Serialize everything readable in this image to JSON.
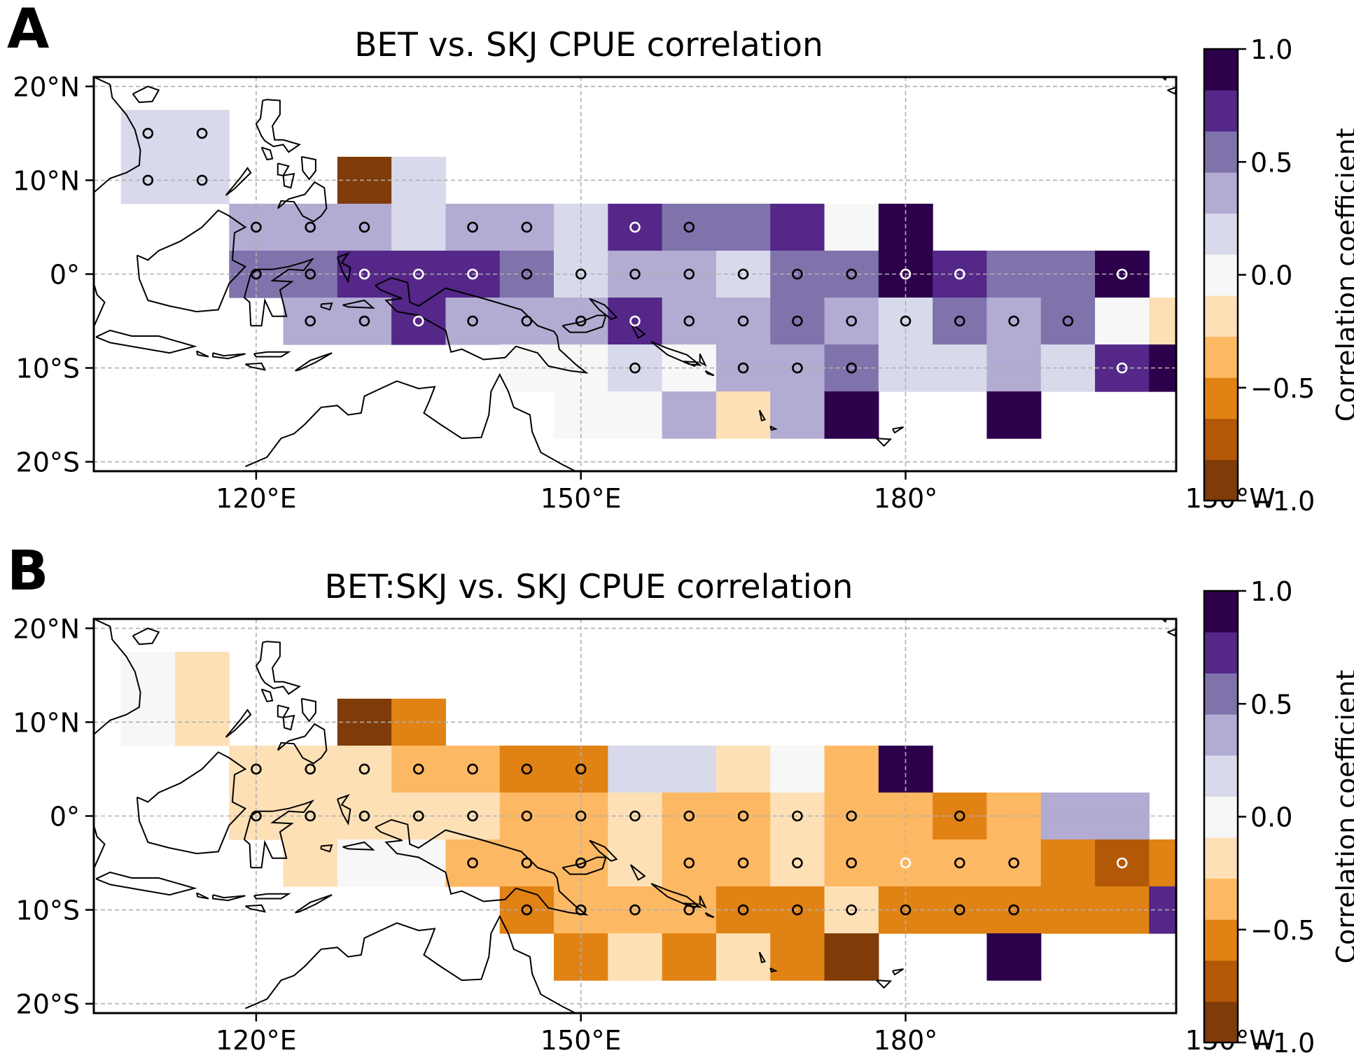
{
  "figure": {
    "colorbar": {
      "label": "Correlation coefficient",
      "ticks": [
        "1.0",
        "0.5",
        "0.0",
        "−0.5",
        "−1.0"
      ],
      "tick_values": [
        1.0,
        0.5,
        0.0,
        -0.5,
        -1.0
      ],
      "vmin": -1.0,
      "vmax": 1.0,
      "colors": [
        "#7f3b08",
        "#b35806",
        "#e08214",
        "#fdb863",
        "#fee0b6",
        "#f7f7f7",
        "#d8daeb",
        "#b2abd2",
        "#8073ac",
        "#542788",
        "#2d004b"
      ]
    },
    "axes": {
      "lon_range": [
        105,
        205
      ],
      "lat_range": [
        -21,
        21
      ],
      "x_ticks": [
        "120°E",
        "150°E",
        "180°",
        "150°W"
      ],
      "x_tick_values": [
        120,
        150,
        180,
        210
      ],
      "y_ticks": [
        "20°N",
        "10°N",
        "0°",
        "10°S",
        "20°S"
      ],
      "y_tick_values": [
        20,
        10,
        0,
        -10,
        -20
      ],
      "grid": true
    }
  },
  "chart_data": [
    {
      "panel": "A",
      "type": "heatmap",
      "title": "BET vs. SKJ CPUE correlation",
      "cell_size_deg": 5,
      "cells": [
        {
          "lon": 110,
          "lat": 15,
          "v": 0.15,
          "sig": "black"
        },
        {
          "lon": 115,
          "lat": 15,
          "v": 0.15,
          "sig": "black"
        },
        {
          "lon": 110,
          "lat": 10,
          "v": 0.15,
          "sig": "black"
        },
        {
          "lon": 115,
          "lat": 10,
          "v": 0.15,
          "sig": "black"
        },
        {
          "lon": 130,
          "lat": 10,
          "v": -0.95
        },
        {
          "lon": 135,
          "lat": 10,
          "v": 0.15
        },
        {
          "lon": 120,
          "lat": 5,
          "v": 0.35,
          "sig": "black"
        },
        {
          "lon": 125,
          "lat": 5,
          "v": 0.35,
          "sig": "black"
        },
        {
          "lon": 130,
          "lat": 5,
          "v": 0.35,
          "sig": "black"
        },
        {
          "lon": 135,
          "lat": 5,
          "v": 0.15
        },
        {
          "lon": 140,
          "lat": 5,
          "v": 0.35,
          "sig": "black"
        },
        {
          "lon": 145,
          "lat": 5,
          "v": 0.35,
          "sig": "black"
        },
        {
          "lon": 150,
          "lat": 5,
          "v": 0.15
        },
        {
          "lon": 155,
          "lat": 5,
          "v": 0.75,
          "sig": "white"
        },
        {
          "lon": 160,
          "lat": 5,
          "v": 0.55,
          "sig": "black"
        },
        {
          "lon": 165,
          "lat": 5,
          "v": 0.55
        },
        {
          "lon": 170,
          "lat": 5,
          "v": 0.75
        },
        {
          "lon": 175,
          "lat": 5,
          "v": 0.0
        },
        {
          "lon": 180,
          "lat": 5,
          "v": 0.95
        },
        {
          "lon": 120,
          "lat": 0,
          "v": 0.55,
          "sig": "black"
        },
        {
          "lon": 125,
          "lat": 0,
          "v": 0.55,
          "sig": "black"
        },
        {
          "lon": 130,
          "lat": 0,
          "v": 0.75,
          "sig": "white"
        },
        {
          "lon": 135,
          "lat": 0,
          "v": 0.75,
          "sig": "white"
        },
        {
          "lon": 140,
          "lat": 0,
          "v": 0.75,
          "sig": "white"
        },
        {
          "lon": 145,
          "lat": 0,
          "v": 0.55,
          "sig": "black"
        },
        {
          "lon": 150,
          "lat": 0,
          "v": 0.15,
          "sig": "black"
        },
        {
          "lon": 155,
          "lat": 0,
          "v": 0.35,
          "sig": "black"
        },
        {
          "lon": 160,
          "lat": 0,
          "v": 0.35,
          "sig": "black"
        },
        {
          "lon": 165,
          "lat": 0,
          "v": 0.15,
          "sig": "black"
        },
        {
          "lon": 170,
          "lat": 0,
          "v": 0.55,
          "sig": "black"
        },
        {
          "lon": 175,
          "lat": 0,
          "v": 0.55,
          "sig": "black"
        },
        {
          "lon": 180,
          "lat": 0,
          "v": 0.95,
          "sig": "white"
        },
        {
          "lon": 185,
          "lat": 0,
          "v": 0.75,
          "sig": "white"
        },
        {
          "lon": 190,
          "lat": 0,
          "v": 0.55
        },
        {
          "lon": 195,
          "lat": 0,
          "v": 0.55
        },
        {
          "lon": 200,
          "lat": 0,
          "v": 0.95,
          "sig": "white"
        },
        {
          "lon": 125,
          "lat": -5,
          "v": 0.35,
          "sig": "black"
        },
        {
          "lon": 130,
          "lat": -5,
          "v": 0.35,
          "sig": "black"
        },
        {
          "lon": 135,
          "lat": -5,
          "v": 0.75,
          "sig": "white"
        },
        {
          "lon": 140,
          "lat": -5,
          "v": 0.35,
          "sig": "black"
        },
        {
          "lon": 145,
          "lat": -5,
          "v": 0.35,
          "sig": "black"
        },
        {
          "lon": 150,
          "lat": -5,
          "v": 0.35,
          "sig": "black"
        },
        {
          "lon": 155,
          "lat": -5,
          "v": 0.75,
          "sig": "white"
        },
        {
          "lon": 160,
          "lat": -5,
          "v": 0.35,
          "sig": "black"
        },
        {
          "lon": 165,
          "lat": -5,
          "v": 0.35,
          "sig": "black"
        },
        {
          "lon": 170,
          "lat": -5,
          "v": 0.55,
          "sig": "black"
        },
        {
          "lon": 175,
          "lat": -5,
          "v": 0.35,
          "sig": "black"
        },
        {
          "lon": 180,
          "lat": -5,
          "v": 0.15,
          "sig": "black"
        },
        {
          "lon": 185,
          "lat": -5,
          "v": 0.55,
          "sig": "black"
        },
        {
          "lon": 190,
          "lat": -5,
          "v": 0.35,
          "sig": "black"
        },
        {
          "lon": 195,
          "lat": -5,
          "v": 0.55,
          "sig": "black"
        },
        {
          "lon": 200,
          "lat": -5,
          "v": 0.0
        },
        {
          "lon": 205,
          "lat": -5,
          "v": -0.15
        },
        {
          "lon": 145,
          "lat": -10,
          "v": 0.0
        },
        {
          "lon": 150,
          "lat": -10,
          "v": 0.0
        },
        {
          "lon": 155,
          "lat": -10,
          "v": 0.15,
          "sig": "black"
        },
        {
          "lon": 160,
          "lat": -10,
          "v": 0.0
        },
        {
          "lon": 165,
          "lat": -10,
          "v": 0.35,
          "sig": "black"
        },
        {
          "lon": 170,
          "lat": -10,
          "v": 0.35,
          "sig": "black"
        },
        {
          "lon": 175,
          "lat": -10,
          "v": 0.55,
          "sig": "black"
        },
        {
          "lon": 180,
          "lat": -10,
          "v": 0.15
        },
        {
          "lon": 185,
          "lat": -10,
          "v": 0.15
        },
        {
          "lon": 190,
          "lat": -10,
          "v": 0.35
        },
        {
          "lon": 195,
          "lat": -10,
          "v": 0.15
        },
        {
          "lon": 200,
          "lat": -10,
          "v": 0.75,
          "sig": "white"
        },
        {
          "lon": 205,
          "lat": -10,
          "v": 0.95
        },
        {
          "lon": 210,
          "lat": -10,
          "v": 0.35
        },
        {
          "lon": 150,
          "lat": -15,
          "v": 0.0
        },
        {
          "lon": 155,
          "lat": -15,
          "v": 0.0
        },
        {
          "lon": 160,
          "lat": -15,
          "v": 0.35
        },
        {
          "lon": 165,
          "lat": -15,
          "v": -0.15
        },
        {
          "lon": 170,
          "lat": -15,
          "v": 0.35
        },
        {
          "lon": 175,
          "lat": -15,
          "v": 0.95
        },
        {
          "lon": 190,
          "lat": -15,
          "v": 0.95
        }
      ]
    },
    {
      "panel": "B",
      "type": "heatmap",
      "title": "BET:SKJ vs. SKJ CPUE correlation",
      "cell_size_deg": 5,
      "cells": [
        {
          "lon": 110,
          "lat": 15,
          "v": 0.0
        },
        {
          "lon": 115,
          "lat": 15,
          "v": -0.15
        },
        {
          "lon": 110,
          "lat": 10,
          "v": 0.0
        },
        {
          "lon": 115,
          "lat": 10,
          "v": -0.15
        },
        {
          "lon": 130,
          "lat": 10,
          "v": -0.95
        },
        {
          "lon": 135,
          "lat": 10,
          "v": -0.55
        },
        {
          "lon": 120,
          "lat": 5,
          "v": -0.15,
          "sig": "black"
        },
        {
          "lon": 125,
          "lat": 5,
          "v": -0.15,
          "sig": "black"
        },
        {
          "lon": 130,
          "lat": 5,
          "v": -0.15,
          "sig": "black"
        },
        {
          "lon": 135,
          "lat": 5,
          "v": -0.35,
          "sig": "black"
        },
        {
          "lon": 140,
          "lat": 5,
          "v": -0.35,
          "sig": "black"
        },
        {
          "lon": 145,
          "lat": 5,
          "v": -0.55,
          "sig": "black"
        },
        {
          "lon": 150,
          "lat": 5,
          "v": -0.55,
          "sig": "black"
        },
        {
          "lon": 155,
          "lat": 5,
          "v": 0.15
        },
        {
          "lon": 160,
          "lat": 5,
          "v": 0.15
        },
        {
          "lon": 165,
          "lat": 5,
          "v": -0.15
        },
        {
          "lon": 170,
          "lat": 5,
          "v": 0.0
        },
        {
          "lon": 175,
          "lat": 5,
          "v": -0.35
        },
        {
          "lon": 180,
          "lat": 5,
          "v": 0.95
        },
        {
          "lon": 120,
          "lat": 0,
          "v": -0.15,
          "sig": "black"
        },
        {
          "lon": 125,
          "lat": 0,
          "v": -0.15,
          "sig": "black"
        },
        {
          "lon": 130,
          "lat": 0,
          "v": -0.15,
          "sig": "black"
        },
        {
          "lon": 135,
          "lat": 0,
          "v": -0.15,
          "sig": "black"
        },
        {
          "lon": 140,
          "lat": 0,
          "v": -0.15,
          "sig": "black"
        },
        {
          "lon": 145,
          "lat": 0,
          "v": -0.35,
          "sig": "black"
        },
        {
          "lon": 150,
          "lat": 0,
          "v": -0.35,
          "sig": "black"
        },
        {
          "lon": 155,
          "lat": 0,
          "v": -0.15,
          "sig": "black"
        },
        {
          "lon": 160,
          "lat": 0,
          "v": -0.35,
          "sig": "black"
        },
        {
          "lon": 165,
          "lat": 0,
          "v": -0.35,
          "sig": "black"
        },
        {
          "lon": 170,
          "lat": 0,
          "v": -0.15,
          "sig": "black"
        },
        {
          "lon": 175,
          "lat": 0,
          "v": -0.35,
          "sig": "black"
        },
        {
          "lon": 180,
          "lat": 0,
          "v": -0.35
        },
        {
          "lon": 185,
          "lat": 0,
          "v": -0.55,
          "sig": "black"
        },
        {
          "lon": 190,
          "lat": 0,
          "v": -0.35
        },
        {
          "lon": 195,
          "lat": 0,
          "v": 0.35
        },
        {
          "lon": 200,
          "lat": 0,
          "v": 0.35
        },
        {
          "lon": 125,
          "lat": -5,
          "v": -0.15
        },
        {
          "lon": 130,
          "lat": -5,
          "v": 0.0
        },
        {
          "lon": 135,
          "lat": -5,
          "v": 0.0
        },
        {
          "lon": 140,
          "lat": -5,
          "v": -0.35,
          "sig": "black"
        },
        {
          "lon": 145,
          "lat": -5,
          "v": -0.35,
          "sig": "black"
        },
        {
          "lon": 150,
          "lat": -5,
          "v": -0.35,
          "sig": "black"
        },
        {
          "lon": 155,
          "lat": -5,
          "v": -0.15
        },
        {
          "lon": 160,
          "lat": -5,
          "v": -0.35,
          "sig": "black"
        },
        {
          "lon": 165,
          "lat": -5,
          "v": -0.35,
          "sig": "black"
        },
        {
          "lon": 170,
          "lat": -5,
          "v": -0.15,
          "sig": "black"
        },
        {
          "lon": 175,
          "lat": -5,
          "v": -0.35,
          "sig": "black"
        },
        {
          "lon": 180,
          "lat": -5,
          "v": -0.35,
          "sig": "white"
        },
        {
          "lon": 185,
          "lat": -5,
          "v": -0.35,
          "sig": "black"
        },
        {
          "lon": 190,
          "lat": -5,
          "v": -0.35,
          "sig": "black"
        },
        {
          "lon": 195,
          "lat": -5,
          "v": -0.55
        },
        {
          "lon": 200,
          "lat": -5,
          "v": -0.75,
          "sig": "white"
        },
        {
          "lon": 205,
          "lat": -5,
          "v": -0.55
        },
        {
          "lon": 145,
          "lat": -10,
          "v": -0.55,
          "sig": "black"
        },
        {
          "lon": 150,
          "lat": -10,
          "v": -0.35,
          "sig": "black"
        },
        {
          "lon": 155,
          "lat": -10,
          "v": -0.35,
          "sig": "black"
        },
        {
          "lon": 160,
          "lat": -10,
          "v": -0.35,
          "sig": "black"
        },
        {
          "lon": 165,
          "lat": -10,
          "v": -0.55,
          "sig": "black"
        },
        {
          "lon": 170,
          "lat": -10,
          "v": -0.55,
          "sig": "black"
        },
        {
          "lon": 175,
          "lat": -10,
          "v": -0.15,
          "sig": "black"
        },
        {
          "lon": 180,
          "lat": -10,
          "v": -0.55,
          "sig": "black"
        },
        {
          "lon": 185,
          "lat": -10,
          "v": -0.55,
          "sig": "black"
        },
        {
          "lon": 190,
          "lat": -10,
          "v": -0.55,
          "sig": "black"
        },
        {
          "lon": 195,
          "lat": -10,
          "v": -0.55
        },
        {
          "lon": 200,
          "lat": -10,
          "v": -0.55
        },
        {
          "lon": 205,
          "lat": -10,
          "v": 0.75
        },
        {
          "lon": 210,
          "lat": -10,
          "v": 0.35
        },
        {
          "lon": 150,
          "lat": -15,
          "v": -0.55
        },
        {
          "lon": 155,
          "lat": -15,
          "v": -0.15
        },
        {
          "lon": 160,
          "lat": -15,
          "v": -0.55
        },
        {
          "lon": 165,
          "lat": -15,
          "v": -0.15
        },
        {
          "lon": 170,
          "lat": -15,
          "v": -0.55
        },
        {
          "lon": 175,
          "lat": -15,
          "v": -0.95
        },
        {
          "lon": 190,
          "lat": -15,
          "v": 0.95
        }
      ]
    }
  ]
}
